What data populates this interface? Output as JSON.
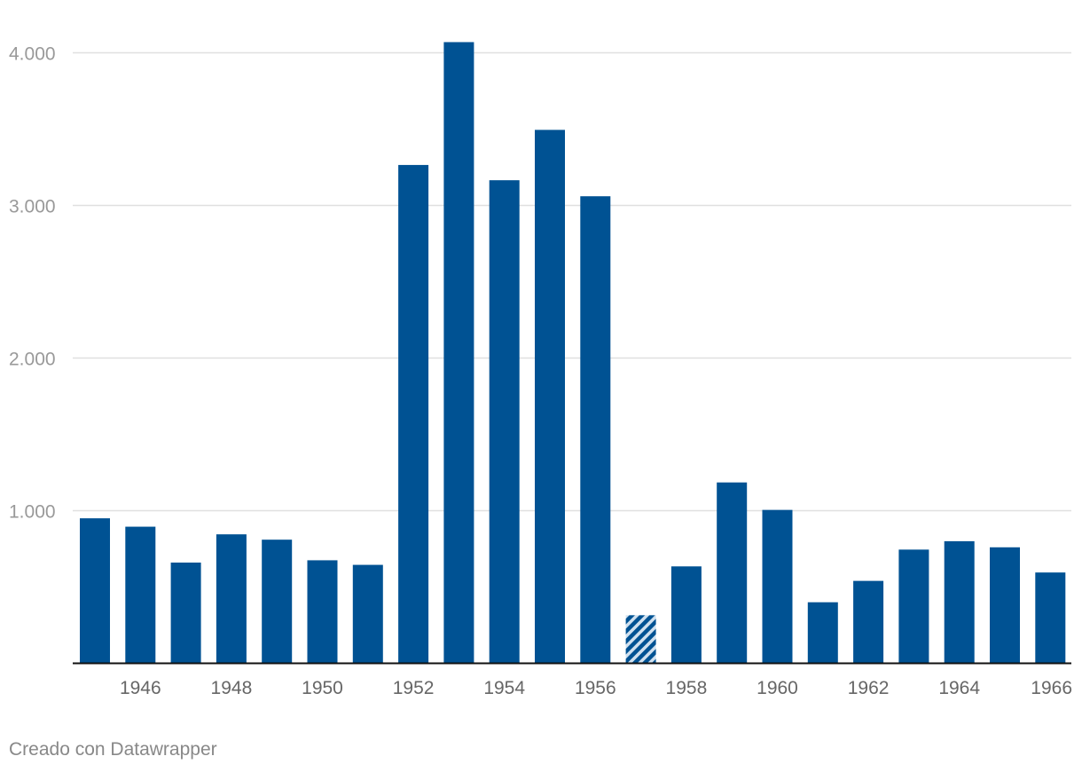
{
  "footer": {
    "credit": "Creado con Datawrapper"
  },
  "colors": {
    "bar": "#005293",
    "grid": "#e0e0e0",
    "axis": "#111111",
    "tick_text": "#999999",
    "xtick_text": "#666666"
  },
  "chart_data": {
    "type": "bar",
    "title": "",
    "xlabel": "",
    "ylabel": "",
    "ylim": [
      0,
      4000
    ],
    "yticks": [
      1000,
      2000,
      3000,
      4000
    ],
    "ytick_labels": [
      "1.000",
      "2.000",
      "3.000",
      "4.000"
    ],
    "categories": [
      "1945",
      "1946",
      "1947",
      "1948",
      "1949",
      "1950",
      "1951",
      "1952",
      "1953",
      "1954",
      "1955",
      "1956",
      "1957",
      "1958",
      "1959",
      "1960",
      "1961",
      "1962",
      "1963",
      "1964",
      "1965",
      "1966"
    ],
    "values": [
      950,
      895,
      660,
      845,
      810,
      675,
      645,
      3265,
      4070,
      3165,
      3495,
      3060,
      315,
      635,
      1185,
      1005,
      400,
      540,
      745,
      800,
      760,
      595
    ],
    "xtick_labels_shown": [
      "1946",
      "1948",
      "1950",
      "1952",
      "1954",
      "1956",
      "1958",
      "1960",
      "1962",
      "1964",
      "1966"
    ],
    "hatched_categories": [
      "1957"
    ],
    "grid": true,
    "legend": "none"
  }
}
